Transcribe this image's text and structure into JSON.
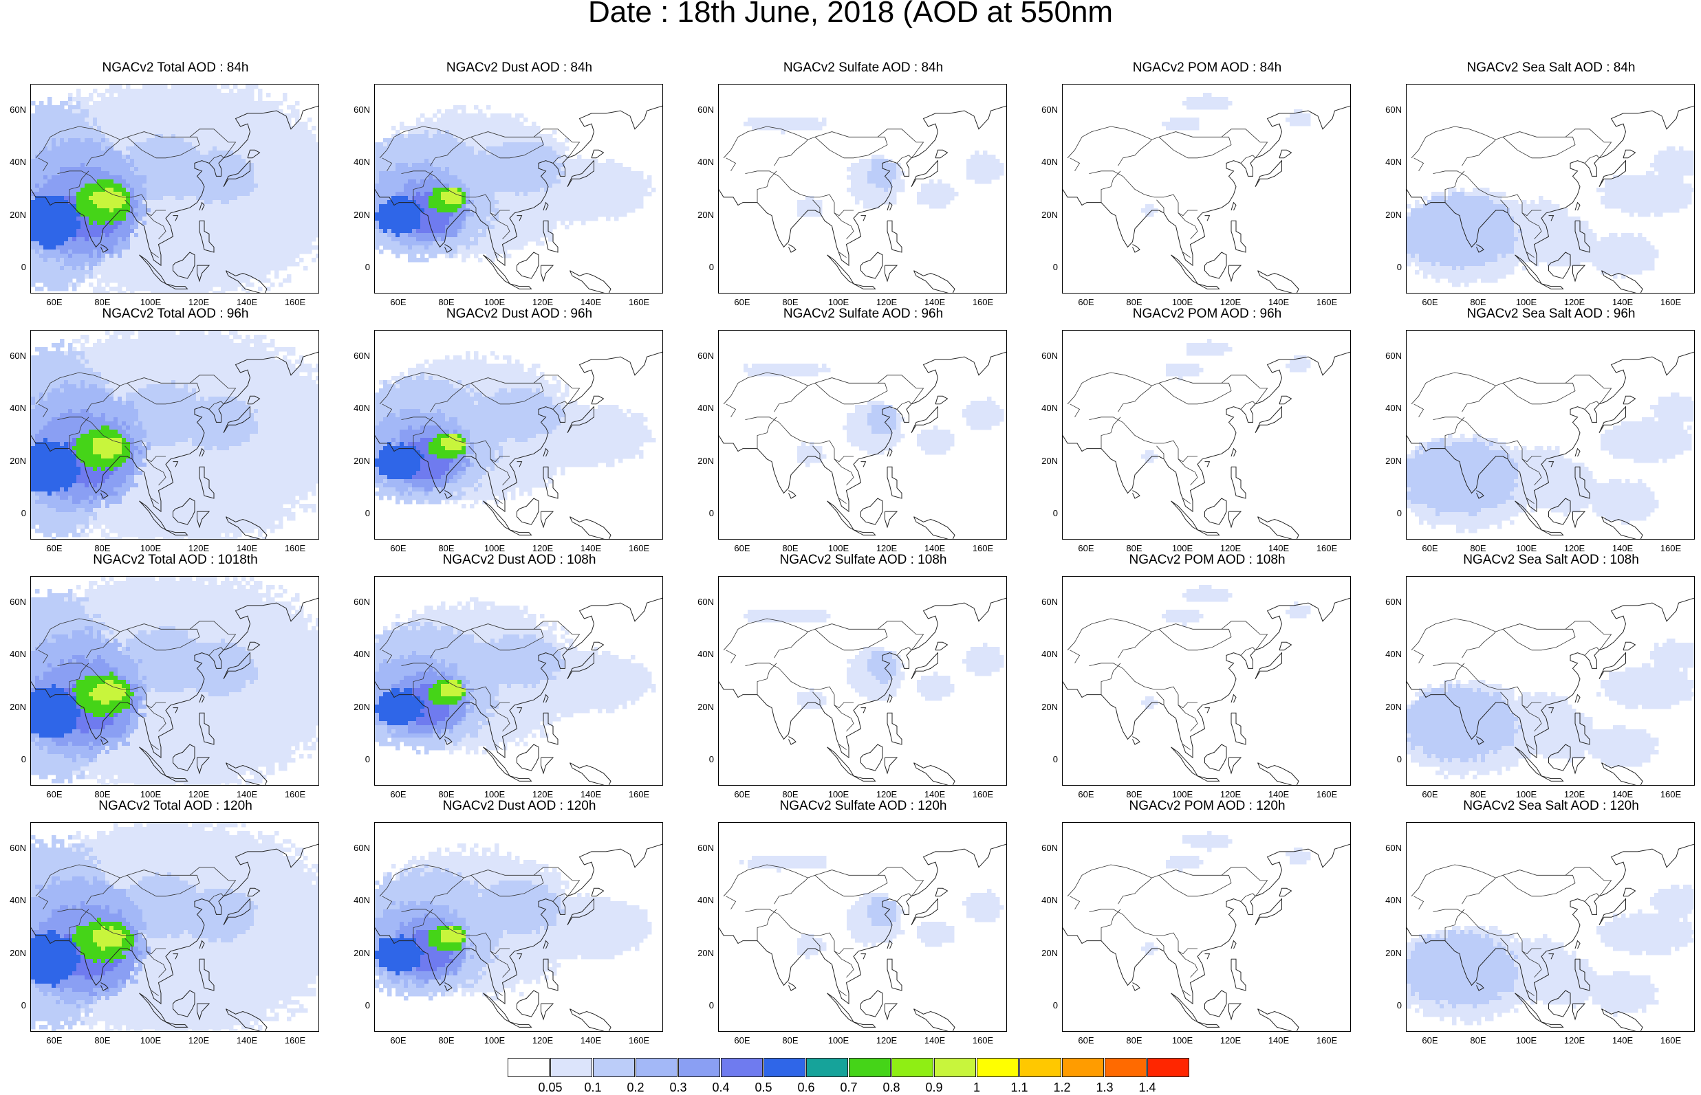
{
  "title": "Date : 18th June, 2018 (AOD at 550nm",
  "panels": [
    {
      "title": "NGACv2 Total AOD : 84h",
      "type": "total"
    },
    {
      "title": "NGACv2 Dust AOD : 84h",
      "type": "dust"
    },
    {
      "title": "NGACv2 Sulfate AOD : 84h",
      "type": "sulfate"
    },
    {
      "title": "NGACv2 POM AOD : 84h",
      "type": "pom"
    },
    {
      "title": "NGACv2 Sea Salt AOD : 84h",
      "type": "seasalt"
    },
    {
      "title": "NGACv2 Total AOD : 96h",
      "type": "total"
    },
    {
      "title": "NGACv2 Dust AOD : 96h",
      "type": "dust"
    },
    {
      "title": "NGACv2 Sulfate AOD : 96h",
      "type": "sulfate"
    },
    {
      "title": "NGACv2 POM AOD : 96h",
      "type": "pom"
    },
    {
      "title": "NGACv2 Sea Salt AOD : 96h",
      "type": "seasalt"
    },
    {
      "title": "NGACv2 Total AOD : 1018th",
      "type": "total"
    },
    {
      "title": "NGACv2 Dust AOD : 108h",
      "type": "dust"
    },
    {
      "title": "NGACv2 Sulfate AOD : 108h",
      "type": "sulfate"
    },
    {
      "title": "NGACv2 POM AOD : 108h",
      "type": "pom"
    },
    {
      "title": "NGACv2 Sea Salt AOD : 108h",
      "type": "seasalt"
    },
    {
      "title": "NGACv2 Total AOD : 120h",
      "type": "total"
    },
    {
      "title": "NGACv2 Dust AOD : 120h",
      "type": "dust"
    },
    {
      "title": "NGACv2 Sulfate AOD : 120h",
      "type": "sulfate"
    },
    {
      "title": "NGACv2 POM AOD : 120h",
      "type": "pom"
    },
    {
      "title": "NGACv2 Sea Salt  AOD : 120h",
      "type": "seasalt"
    }
  ],
  "axes": {
    "y_ticks": [
      "60N",
      "40N",
      "20N",
      "0"
    ],
    "x_ticks": [
      "60E",
      "80E",
      "100E",
      "120E",
      "140E",
      "160E"
    ],
    "lat_range": [
      -10,
      70
    ],
    "lon_range": [
      50,
      170
    ]
  },
  "colorbar": {
    "labels": [
      "0.05",
      "0.1",
      "0.2",
      "0.3",
      "0.4",
      "0.5",
      "0.6",
      "0.7",
      "0.8",
      "0.9",
      "1",
      "1.1",
      "1.2",
      "1.3",
      "1.4"
    ],
    "colors": [
      "#ffffff",
      "#dce4fb",
      "#bccdf9",
      "#a3b8f7",
      "#8a9ff3",
      "#6f7bef",
      "#2f66e8",
      "#16a39a",
      "#45d418",
      "#8fee14",
      "#c8f53c",
      "#ffff00",
      "#ffc800",
      "#ff9c00",
      "#ff6a00",
      "#ff2600"
    ]
  },
  "map_layers": {
    "total": "Total",
    "dust": "Dust",
    "sulfate": "Sulfate",
    "pom": "POM",
    "seasalt": "Sea Salt"
  }
}
